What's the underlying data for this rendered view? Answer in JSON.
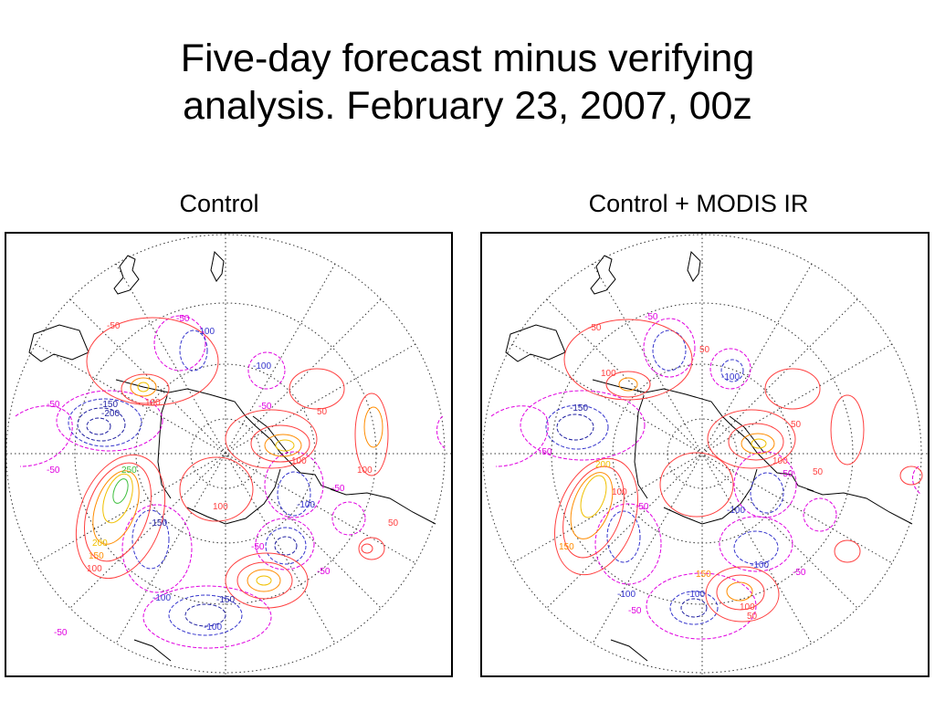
{
  "slide": {
    "title_line1": "Five-day forecast minus verifying",
    "title_line2": "analysis.  February 23, 2007, 00z"
  },
  "panels": [
    {
      "label": "Control",
      "contours": [
        {
          "value": -50,
          "color": "#e000e0"
        },
        {
          "value": -100,
          "color": "#3333cc"
        },
        {
          "value": -150,
          "color": "#1e1ea0"
        },
        {
          "value": -200,
          "color": "#1e1ea0"
        },
        {
          "value": 50,
          "color": "#ff4040"
        },
        {
          "value": 100,
          "color": "#ff4040"
        },
        {
          "value": 150,
          "color": "#ff8c00"
        },
        {
          "value": 200,
          "color": "#f0c000"
        },
        {
          "value": 250,
          "color": "#40c040"
        }
      ],
      "labels": {
        "l1": "-50",
        "l2": "-100",
        "l3": "-50",
        "l4": "-150",
        "l5": "-200",
        "l6": "100",
        "l7": "-50",
        "l8": "-50",
        "l9": "250",
        "l10": "200",
        "l11": "150",
        "l12": "100",
        "l13": "-150",
        "l14": "-100",
        "l15": "-150",
        "l16": "100",
        "l17": "-50",
        "l18": "-100",
        "l19": "100",
        "l20": "-50",
        "l21": "50",
        "l22": "-100",
        "l23": "-50",
        "l24": "100",
        "l25": "50",
        "l26": "-50",
        "l27": "-100",
        "l28": "-50"
      }
    },
    {
      "label": "Control + MODIS IR",
      "contours": [
        {
          "value": -50,
          "color": "#e000e0"
        },
        {
          "value": -100,
          "color": "#3333cc"
        },
        {
          "value": -150,
          "color": "#1e1ea0"
        },
        {
          "value": 50,
          "color": "#ff4040"
        },
        {
          "value": 100,
          "color": "#ff4040"
        },
        {
          "value": 150,
          "color": "#ff8c00"
        },
        {
          "value": 200,
          "color": "#f0c000"
        }
      ],
      "labels": {
        "l1": "-50",
        "l2": "-50",
        "l3": "100",
        "l4": "-150",
        "l5": "-50",
        "l6": "-100",
        "l7": "50",
        "l8": "200",
        "l9": "100",
        "l10": "150",
        "l11": "-50",
        "l12": "-100",
        "l13": "50",
        "l14": "-50",
        "l15": "100",
        "l16": "-100",
        "l17": "150",
        "l18": "100",
        "l19": "50",
        "l20": "50",
        "l21": "-50",
        "l22": "-100",
        "l23": "-50",
        "l24": "-100"
      }
    }
  ],
  "colors": {
    "grid": "#333333",
    "coast": "#000000",
    "neg50": "#e000e0",
    "neg100": "#3333cc",
    "pos50": "#ff4040",
    "pos150": "#ff8c00",
    "pos200": "#f0c000",
    "pos250": "#40c040"
  }
}
